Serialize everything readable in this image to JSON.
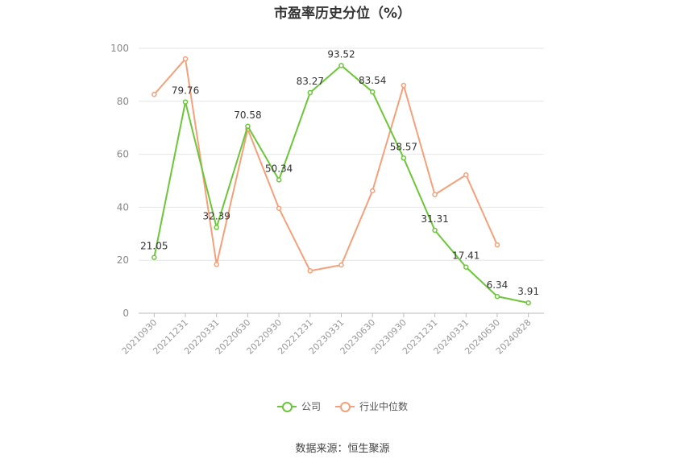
{
  "chart_data": {
    "type": "line",
    "title": "市盈率历史分位（%）",
    "categories": [
      "20210930",
      "20211231",
      "20220331",
      "20220630",
      "20220930",
      "20221231",
      "20230331",
      "20230630",
      "20230930",
      "20231231",
      "20240331",
      "20240630",
      "20240828"
    ],
    "ylim": [
      0,
      100
    ],
    "yticks": [
      0,
      20,
      40,
      60,
      80,
      100
    ],
    "grid": true,
    "legend_position": "bottom",
    "series": [
      {
        "name": "公司",
        "color": "#6cc63a",
        "values": [
          21.05,
          79.76,
          32.39,
          70.58,
          50.34,
          83.27,
          93.52,
          83.54,
          58.57,
          31.31,
          17.41,
          6.34,
          3.91
        ],
        "labels": [
          "21.05",
          "79.76",
          "32.39",
          "70.58",
          "50.34",
          "83.27",
          "93.52",
          "83.54",
          "58.57",
          "31.31",
          "17.41",
          "6.34",
          "3.91"
        ]
      },
      {
        "name": "行业中位数",
        "color": "#f4a07a",
        "values": [
          82.6,
          96.0,
          18.4,
          69.5,
          39.6,
          16.0,
          18.2,
          46.2,
          86.0,
          44.8,
          52.2,
          25.8,
          null
        ]
      }
    ]
  },
  "source": "数据来源：恒生聚源"
}
